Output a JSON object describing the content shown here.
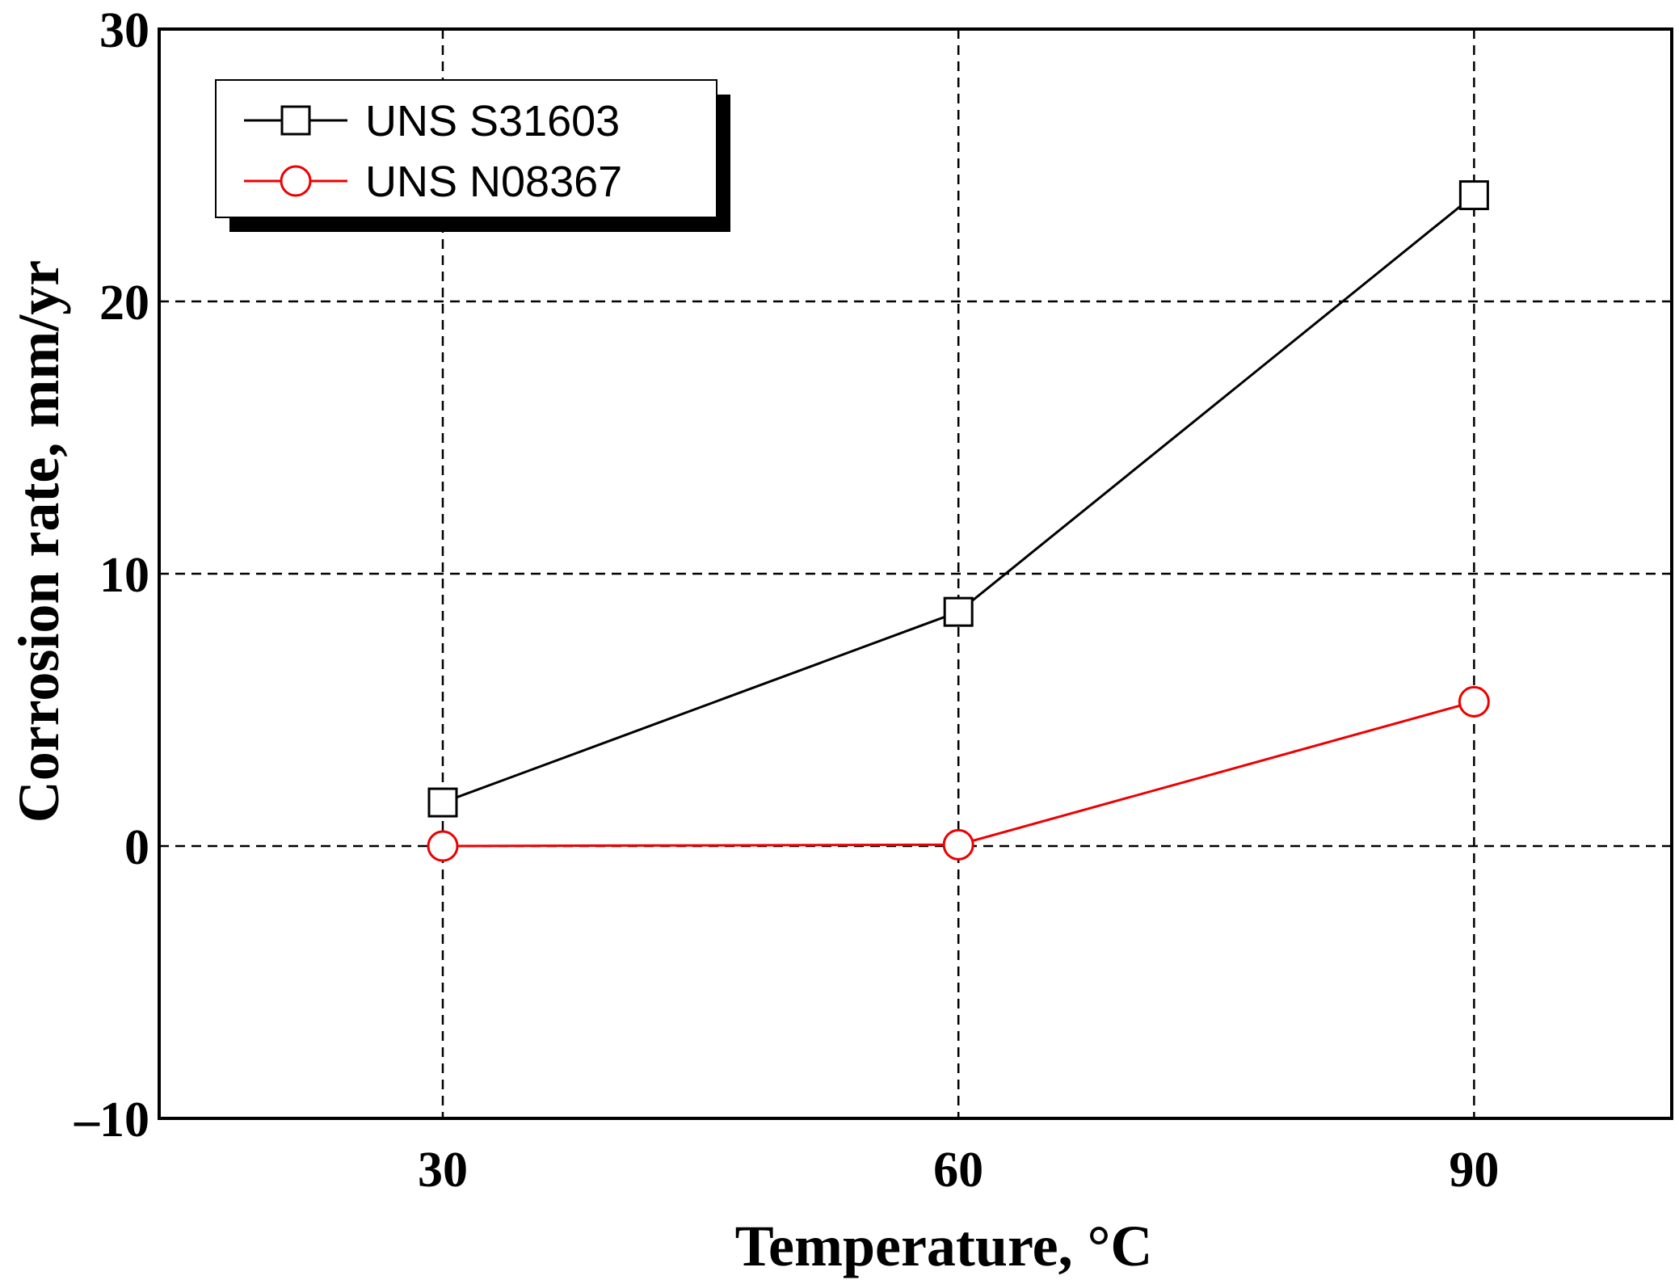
{
  "chart_data": {
    "type": "line",
    "xlabel": "Temperature, °C",
    "ylabel": "Corrosion rate, mm/yr",
    "xlim": [
      13.5,
      101.5
    ],
    "ylim": [
      -10,
      30
    ],
    "xticks": [
      "30",
      "60",
      "90"
    ],
    "yticks": [
      "–10",
      "0",
      "10",
      "20",
      "30"
    ],
    "grid": true,
    "legend_position": "top-left",
    "x": [
      30,
      60,
      90
    ],
    "series": [
      {
        "name": "UNS S31603",
        "values": [
          1.6,
          8.6,
          23.9
        ],
        "color": "#000000",
        "marker": "square"
      },
      {
        "name": "UNS N08367",
        "values": [
          0.0,
          0.05,
          5.3
        ],
        "color": "#ee0000",
        "marker": "circle"
      }
    ]
  }
}
